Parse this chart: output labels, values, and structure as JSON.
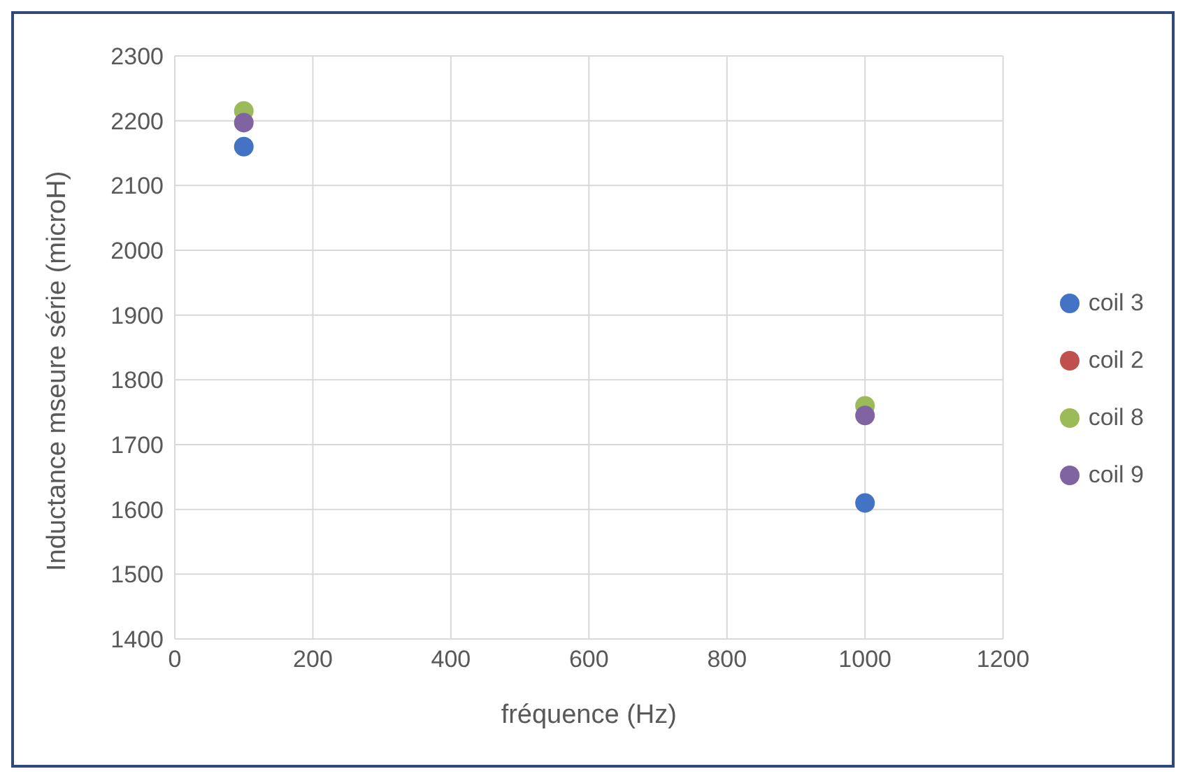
{
  "chart_data": {
    "type": "scatter",
    "xlabel": "fréquence (Hz)",
    "ylabel": "Inductance mseure série  (microH)",
    "x": [
      100,
      1000
    ],
    "series": [
      {
        "name": "coil 3",
        "color": "#4472c4",
        "values": [
          2160,
          1610
        ]
      },
      {
        "name": "coil 2",
        "color": "#c0504d",
        "values": [
          null,
          null
        ]
      },
      {
        "name": "coil 8",
        "color": "#9bbb59",
        "values": [
          2215,
          1760
        ]
      },
      {
        "name": "coil 9",
        "color": "#8064a2",
        "values": [
          2197,
          1745
        ]
      }
    ],
    "xlim": [
      0,
      1200
    ],
    "xticks": [
      0,
      200,
      400,
      600,
      800,
      1000,
      1200
    ],
    "ylim": [
      1400,
      2300
    ],
    "yticks": [
      1400,
      1500,
      1600,
      1700,
      1800,
      1900,
      2000,
      2100,
      2200,
      2300
    ],
    "grid": true,
    "legend": "right",
    "marker": "circle"
  }
}
